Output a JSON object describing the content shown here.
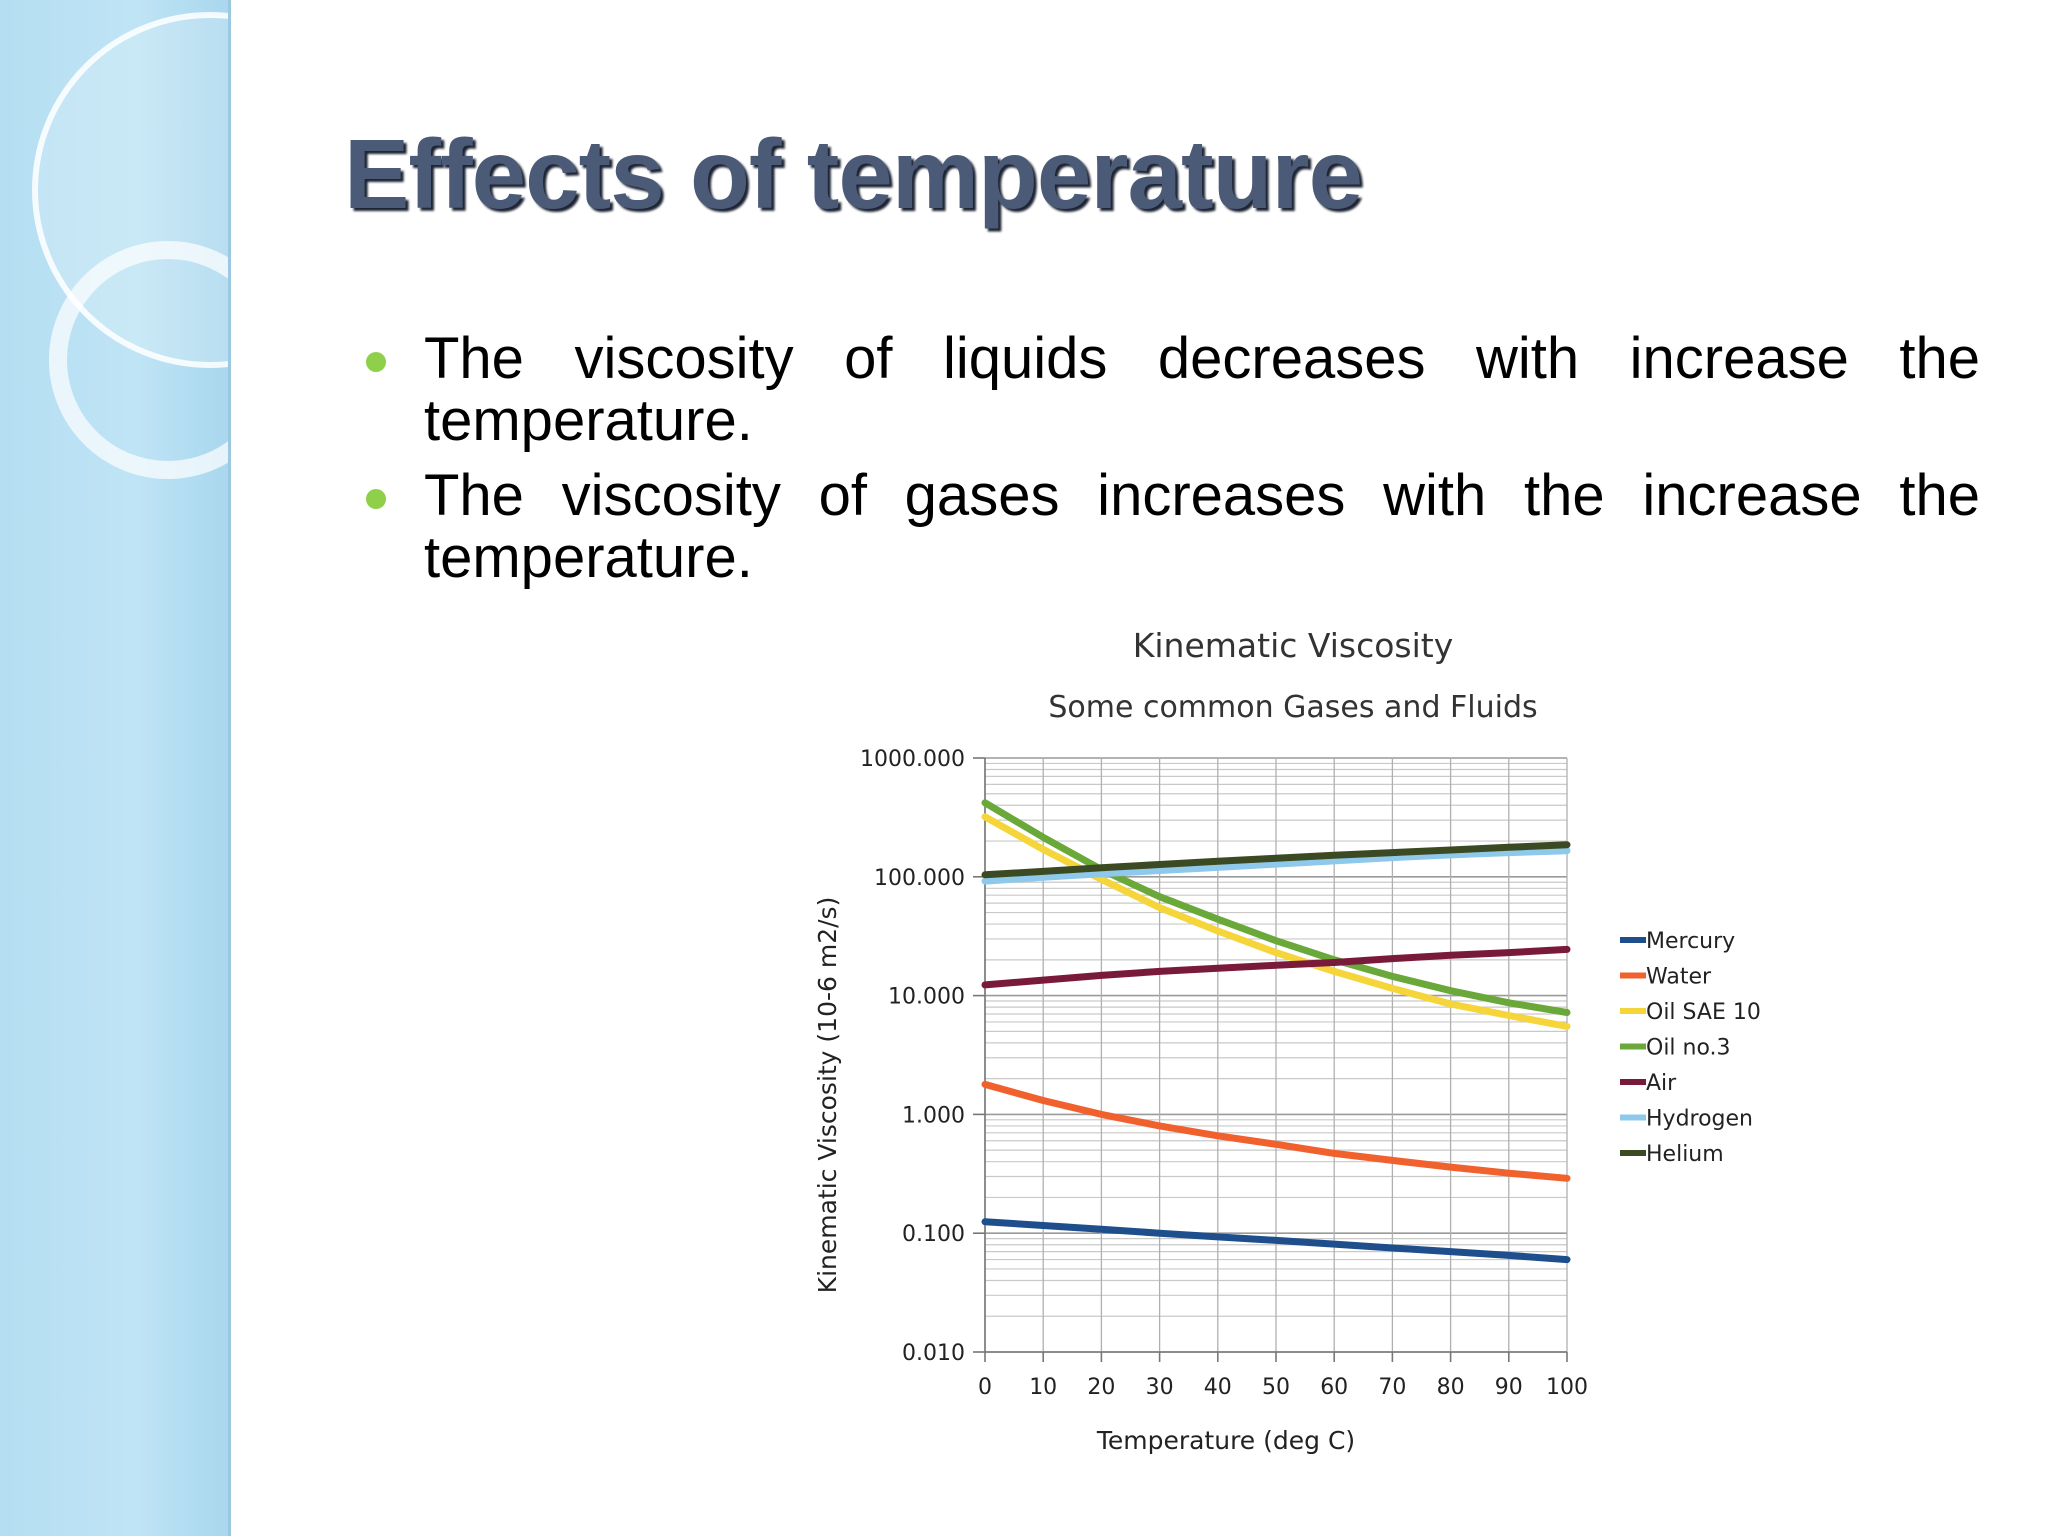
{
  "slide": {
    "title": "Effects of temperature",
    "bullets": [
      "The viscosity of liquids decreases with increase the temperature.",
      "The viscosity of gases increases with the increase the temperature."
    ],
    "accent_color": "#8fd04a",
    "title_color": "#4a5a77"
  },
  "chart_data": {
    "type": "line",
    "title": "Kinematic Viscosity",
    "subtitle": "Some common Gases and Fluids",
    "xlabel": "Temperature (deg C)",
    "ylabel": "Kinematic Viscosity (10-6 m2/s)",
    "yscale": "log",
    "xlim": [
      0,
      100
    ],
    "ylim": [
      0.01,
      1000
    ],
    "x_ticks": [
      0,
      10,
      20,
      30,
      40,
      50,
      60,
      70,
      80,
      90,
      100
    ],
    "y_tick_labels": [
      "1000.000",
      "100.000",
      "10.000",
      "1.000",
      "0.100",
      "0.010"
    ],
    "grid": true,
    "legend_position": "right",
    "x": [
      0,
      10,
      20,
      30,
      40,
      50,
      60,
      70,
      80,
      90,
      100
    ],
    "series": [
      {
        "name": "Mercury",
        "color": "#1f4e8c",
        "values": [
          0.125,
          0.116,
          0.108,
          0.1,
          0.093,
          0.087,
          0.081,
          0.075,
          0.07,
          0.065,
          0.06
        ]
      },
      {
        "name": "Water",
        "color": "#f0612d",
        "values": [
          1.79,
          1.31,
          1.0,
          0.8,
          0.66,
          0.56,
          0.47,
          0.41,
          0.36,
          0.32,
          0.29
        ]
      },
      {
        "name": "Oil SAE 10",
        "color": "#f5d53a",
        "values": [
          320,
          170,
          95,
          55,
          35,
          23,
          16,
          11.5,
          8.5,
          6.8,
          5.5
        ]
      },
      {
        "name": "Oil no.3",
        "color": "#6aa83a",
        "values": [
          420,
          215,
          115,
          68,
          44,
          29,
          20,
          14.5,
          11,
          8.7,
          7.2
        ]
      },
      {
        "name": "Air",
        "color": "#7a1a3a",
        "values": [
          12.3,
          13.5,
          14.8,
          16.0,
          17.0,
          18.0,
          19.0,
          20.5,
          21.9,
          23.0,
          24.5
        ]
      },
      {
        "name": "Hydrogen",
        "color": "#8ec8ea",
        "values": [
          92,
          99,
          106,
          113,
          120,
          128,
          136,
          145,
          153,
          160,
          166
        ]
      },
      {
        "name": "Helium",
        "color": "#3b4a22",
        "values": [
          104,
          111,
          119,
          127,
          135,
          143,
          152,
          160,
          168,
          177,
          186
        ]
      }
    ]
  }
}
